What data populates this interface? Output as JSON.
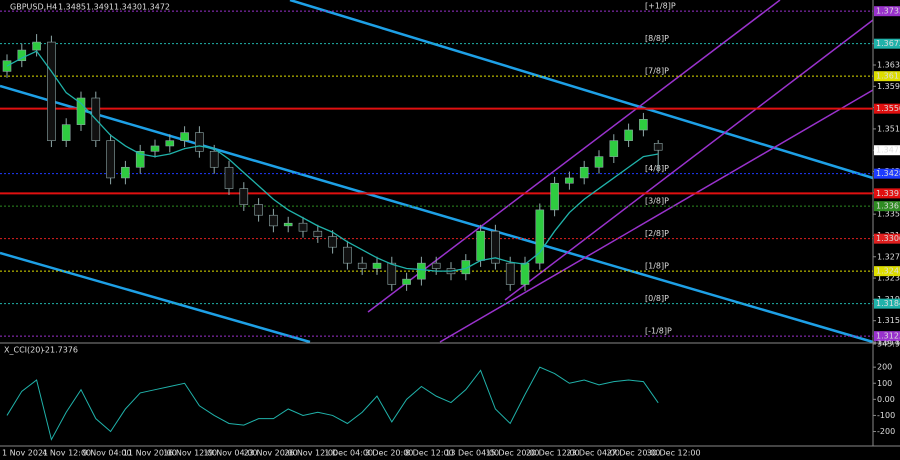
{
  "chart_data": {
    "type": "candlestick",
    "title": "GBPUSD,H4",
    "x_labels": [
      "1 Nov 2021",
      "4 Nov 12:00",
      "9 Nov 04:00",
      "11 Nov 20:00",
      "16 Nov 12:00",
      "19 Nov 04:00",
      "23 Nov 20:00",
      "26 Nov 12:00",
      "1 Dec 04:00",
      "3 Dec 20:00",
      "8 Dec 12:00",
      "13 Dec 04:00",
      "15 Dec 20:00",
      "20 Dec 12:00",
      "23 Dec 04:00",
      "27 Dec 20:00",
      "30 Dec 12:00"
    ],
    "open": [
      1.362,
      1.364,
      1.366,
      1.3675,
      1.349,
      1.352,
      1.357,
      1.349,
      1.342,
      1.344,
      1.347,
      1.348,
      1.349,
      1.3505,
      1.347,
      1.344,
      1.34,
      1.337,
      1.335,
      1.333,
      1.3335,
      1.332,
      1.331,
      1.329,
      1.326,
      1.325,
      1.326,
      1.322,
      1.323,
      1.326,
      1.325,
      1.324,
      1.3265,
      1.332,
      1.326,
      1.322,
      1.326,
      1.336,
      1.341,
      1.342,
      1.344,
      1.346,
      1.349,
      1.351,
      1.3485
    ],
    "high": [
      1.3652,
      1.3672,
      1.369,
      1.3687,
      1.3532,
      1.3582,
      1.3582,
      1.3502,
      1.3452,
      1.3482,
      1.3492,
      1.3502,
      1.3517,
      1.3517,
      1.3482,
      1.3452,
      1.3412,
      1.3382,
      1.3362,
      1.3347,
      1.3347,
      1.3332,
      1.3322,
      1.3302,
      1.3272,
      1.3272,
      1.3272,
      1.3242,
      1.3272,
      1.3272,
      1.3262,
      1.3277,
      1.3332,
      1.3332,
      1.3272,
      1.3272,
      1.3372,
      1.3422,
      1.3432,
      1.3452,
      1.3472,
      1.3502,
      1.3522,
      1.3542,
      1.3491
    ],
    "low": [
      1.3608,
      1.3628,
      1.3648,
      1.3478,
      1.3478,
      1.3508,
      1.3478,
      1.3408,
      1.3408,
      1.3428,
      1.3458,
      1.3468,
      1.3478,
      1.3458,
      1.3428,
      1.3388,
      1.3358,
      1.3338,
      1.3318,
      1.3318,
      1.3308,
      1.3298,
      1.3278,
      1.3248,
      1.3238,
      1.3238,
      1.3208,
      1.3208,
      1.3218,
      1.3238,
      1.3228,
      1.3228,
      1.3253,
      1.3248,
      1.3208,
      1.3208,
      1.3248,
      1.3348,
      1.3398,
      1.3408,
      1.3428,
      1.3448,
      1.3478,
      1.3498,
      1.343
    ],
    "close": [
      1.364,
      1.366,
      1.3675,
      1.349,
      1.352,
      1.357,
      1.349,
      1.342,
      1.344,
      1.347,
      1.348,
      1.349,
      1.3505,
      1.347,
      1.344,
      1.34,
      1.337,
      1.335,
      1.333,
      1.3335,
      1.332,
      1.331,
      1.329,
      1.326,
      1.325,
      1.326,
      1.322,
      1.323,
      1.326,
      1.325,
      1.324,
      1.3265,
      1.332,
      1.326,
      1.322,
      1.326,
      1.336,
      1.341,
      1.342,
      1.344,
      1.346,
      1.349,
      1.351,
      1.353,
      1.3472
    ],
    "ma": [
      1.363,
      1.3645,
      1.3658,
      1.362,
      1.358,
      1.356,
      1.353,
      1.35,
      1.348,
      1.3465,
      1.346,
      1.3465,
      1.3475,
      1.348,
      1.3475,
      1.3455,
      1.343,
      1.3405,
      1.338,
      1.336,
      1.3345,
      1.333,
      1.3318,
      1.33,
      1.3285,
      1.327,
      1.3258,
      1.325,
      1.3248,
      1.3245,
      1.3245,
      1.325,
      1.3265,
      1.327,
      1.3262,
      1.3258,
      1.328,
      1.332,
      1.3355,
      1.338,
      1.34,
      1.342,
      1.344,
      1.346,
      1.3465
    ],
    "up_color": "#2ecc40",
    "down_color": "#111111",
    "wick_color": "#8fa8a8",
    "ma_color": "#20b2aa",
    "ylim": [
      1.3112,
      1.3754
    ],
    "yticks": [
      1.3672,
      1.3632,
      1.3592,
      1.3552,
      1.3512,
      1.3472,
      1.3432,
      1.3392,
      1.3352,
      1.3312,
      1.3272,
      1.3232,
      1.3192,
      1.3152,
      1.3112
    ],
    "levels": [
      {
        "label": "[+1/8]P",
        "value": 1.3733,
        "color": "#9932cc"
      },
      {
        "label": "[8/8]P",
        "value": 1.3672,
        "color": "#20b2aa"
      },
      {
        "label": "[7/8]P",
        "value": 1.3611,
        "color": "#dede00"
      },
      {
        "label": "[4/8]P",
        "value": 1.3428,
        "color": "#1e3cff"
      },
      {
        "label": "[3/8]P",
        "value": 1.3367,
        "color": "#2e8b22"
      },
      {
        "label": "[2/8]P",
        "value": 1.3306,
        "color": "#e02020"
      },
      {
        "label": "[1/8]P",
        "value": 1.3245,
        "color": "#dede00"
      },
      {
        "label": "[0/8]P",
        "value": 1.3184,
        "color": "#20b2aa"
      },
      {
        "label": "[-1/8]P",
        "value": 1.3123,
        "color": "#9932cc"
      }
    ],
    "sr_levels": [
      {
        "value": 1.355,
        "color": "#e01010"
      },
      {
        "value": 1.3391,
        "color": "#e01010"
      }
    ],
    "indicator": {
      "title": "X_CCI(20)",
      "color": "#20b2aa",
      "values": [
        -100,
        50,
        120,
        -250,
        -80,
        60,
        -120,
        -200,
        -60,
        40,
        60,
        80,
        100,
        -40,
        -100,
        -150,
        -160,
        -120,
        -120,
        -60,
        -100,
        -80,
        -100,
        -150,
        -80,
        20,
        -140,
        0,
        80,
        20,
        -20,
        60,
        180,
        -60,
        -150,
        30,
        200,
        160,
        100,
        120,
        90,
        110,
        120,
        110,
        -21.7376
      ],
      "ylim": [
        -290,
        343.9586
      ],
      "yticks": [
        343.9586,
        200,
        100,
        {
          "value": 0,
          "label": "0.00"
        },
        -100,
        -200
      ]
    }
  }
}
